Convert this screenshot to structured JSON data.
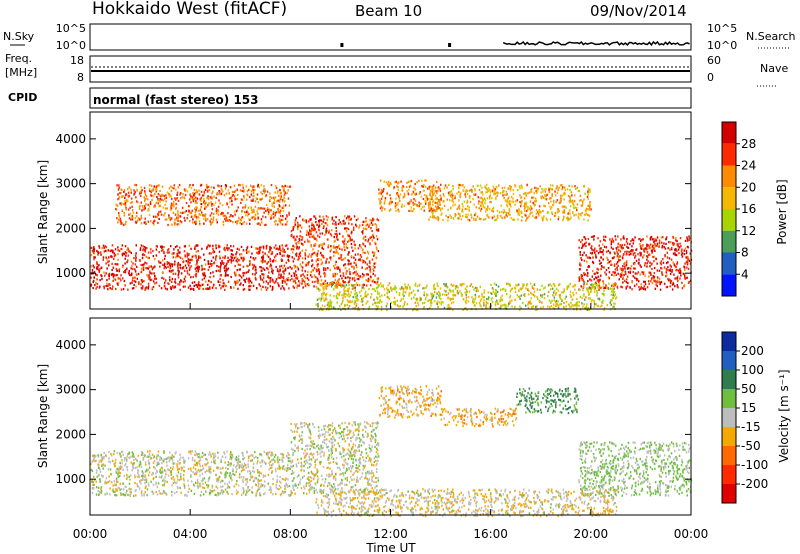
{
  "header": {
    "station": "Hokkaido West (fitACF)",
    "beam": "Beam 10",
    "date": "09/Nov/2014"
  },
  "panels": {
    "nsky": {
      "label": "N.Sky",
      "right_label": "N.Search",
      "y_ticks": [
        "10^5",
        "10^0"
      ],
      "right_ticks": [
        "10^5",
        "10^0"
      ]
    },
    "freq": {
      "label_line1": "Freq.",
      "label_line2": "[MHz]",
      "y_ticks": [
        "18",
        "8"
      ],
      "right_label": "Nave",
      "right_ticks": [
        "60",
        "0"
      ]
    },
    "cpid": {
      "label": "CPID",
      "text": "normal (fast stereo) 153"
    }
  },
  "axes": {
    "x_ticks": [
      "00:00",
      "04:00",
      "08:00",
      "12:00",
      "16:00",
      "20:00",
      "00:00"
    ],
    "x_label": "Time UT",
    "y_ticks": [
      "1000",
      "2000",
      "3000",
      "4000"
    ],
    "y_label": "Slant Range [km]"
  },
  "colorbars": {
    "power": {
      "label": "Power [dB]",
      "ticks": [
        "28",
        "24",
        "20",
        "16",
        "12",
        "8",
        "4"
      ],
      "colors": [
        "#d40000",
        "#ff2a00",
        "#ff8c00",
        "#f5b800",
        "#a8d400",
        "#4a9e5a",
        "#1f5fbf",
        "#0014ff"
      ]
    },
    "velocity": {
      "label": "Velocity [m s⁻¹]",
      "ticks": [
        "200",
        "100",
        "50",
        "15",
        "-15",
        "-50",
        "-100",
        "-200"
      ],
      "colors": [
        "#0b2b9e",
        "#1f5fbf",
        "#2f7d4f",
        "#6fbf3f",
        "#bdbdbd",
        "#f5a800",
        "#ff6a00",
        "#ff2a00",
        "#e00000"
      ]
    }
  },
  "chart_data": [
    {
      "type": "heatmap",
      "name": "power",
      "x_range_hours": [
        0,
        24
      ],
      "ylim": [
        200,
        4600
      ],
      "regions": [
        {
          "t": [
            0,
            8
          ],
          "r": [
            650,
            1650
          ],
          "value": 28
        },
        {
          "t": [
            8,
            11.5
          ],
          "r": [
            700,
            2300
          ],
          "value": 26
        },
        {
          "t": [
            1,
            8
          ],
          "r": [
            2100,
            3000
          ],
          "value": 24
        },
        {
          "t": [
            11.5,
            14
          ],
          "r": [
            2400,
            3100
          ],
          "value": 22
        },
        {
          "t": [
            13.5,
            20
          ],
          "r": [
            2200,
            3000
          ],
          "value": 20
        },
        {
          "t": [
            19.5,
            24
          ],
          "r": [
            650,
            1850
          ],
          "value": 28
        },
        {
          "t": [
            9,
            21
          ],
          "r": [
            200,
            800
          ],
          "value": 16
        }
      ]
    },
    {
      "type": "heatmap",
      "name": "velocity",
      "x_range_hours": [
        0,
        24
      ],
      "ylim": [
        200,
        4600
      ],
      "regions": [
        {
          "t": [
            0,
            8
          ],
          "r": [
            650,
            1650
          ],
          "value": 0
        },
        {
          "t": [
            8,
            11.5
          ],
          "r": [
            700,
            2300
          ],
          "value": 0
        },
        {
          "t": [
            11.5,
            14
          ],
          "r": [
            2400,
            3100
          ],
          "value": -30
        },
        {
          "t": [
            14,
            17
          ],
          "r": [
            2200,
            2600
          ],
          "value": -30
        },
        {
          "t": [
            17,
            19.5
          ],
          "r": [
            2500,
            3050
          ],
          "value": 60
        },
        {
          "t": [
            19.5,
            24
          ],
          "r": [
            650,
            1850
          ],
          "value": 20
        },
        {
          "t": [
            9,
            21
          ],
          "r": [
            200,
            800
          ],
          "value": -10
        }
      ]
    }
  ]
}
